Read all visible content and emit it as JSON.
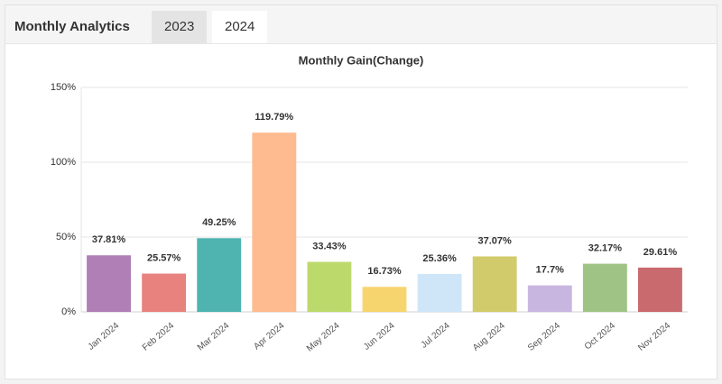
{
  "header": {
    "title": "Monthly Analytics",
    "tabs": [
      "2023",
      "2024"
    ],
    "active_tab": 1
  },
  "chart_data": {
    "type": "bar",
    "title": "Monthly Gain(Change)",
    "categories": [
      "Jan 2024",
      "Feb 2024",
      "Mar 2024",
      "Apr 2024",
      "May 2024",
      "Jun 2024",
      "Jul 2024",
      "Aug 2024",
      "Sep 2024",
      "Oct 2024",
      "Nov 2024"
    ],
    "values": [
      37.81,
      25.57,
      49.25,
      119.79,
      33.43,
      16.73,
      25.36,
      37.07,
      17.7,
      32.17,
      29.61
    ],
    "value_labels": [
      "37.81%",
      "25.57%",
      "49.25%",
      "119.79%",
      "33.43%",
      "16.73%",
      "25.36%",
      "37.07%",
      "17.7%",
      "32.17%",
      "29.61%"
    ],
    "colors": [
      "#b07fb5",
      "#e8827f",
      "#4fb3b0",
      "#fdbb8f",
      "#bcd96b",
      "#f7d56e",
      "#cfe6f8",
      "#d2cb6b",
      "#c9b6e0",
      "#9fc384",
      "#c96b6e"
    ],
    "ylim": [
      0,
      150
    ],
    "yticks": [
      {
        "value": 0,
        "label": "0%"
      },
      {
        "value": 50,
        "label": "50%"
      },
      {
        "value": 100,
        "label": "100%"
      },
      {
        "value": 150,
        "label": "150%"
      }
    ],
    "grid": true
  }
}
